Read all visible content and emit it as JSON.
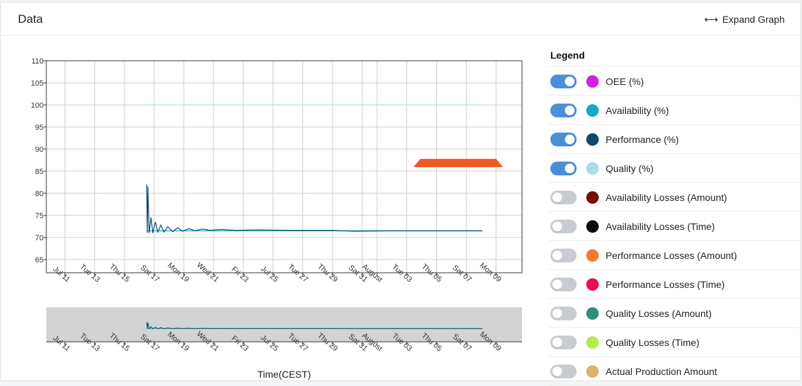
{
  "panel": {
    "title": "Data",
    "expand_label": "Expand Graph",
    "expand_icon": "⟷"
  },
  "legend": {
    "title": "Legend",
    "items": [
      {
        "label": "OEE (%)",
        "color": "#d61ee8",
        "enabled": true
      },
      {
        "label": "Availability (%)",
        "color": "#15a6c5",
        "enabled": true
      },
      {
        "label": "Performance (%)",
        "color": "#0e4a6b",
        "enabled": true
      },
      {
        "label": "Quality (%)",
        "color": "#a9dde2",
        "enabled": true
      },
      {
        "label": "Availability Losses (Amount)",
        "color": "#7a0b0b",
        "enabled": false
      },
      {
        "label": "Availability Losses (Time)",
        "color": "#0a0a0a",
        "enabled": false
      },
      {
        "label": "Performance Losses (Amount)",
        "color": "#f57a2e",
        "enabled": false
      },
      {
        "label": "Performance Losses (Time)",
        "color": "#e80f4e",
        "enabled": false
      },
      {
        "label": "Quality Losses (Amount)",
        "color": "#2f8f7f",
        "enabled": false
      },
      {
        "label": "Quality Losses (Time)",
        "color": "#b6ea4a",
        "enabled": false
      },
      {
        "label": "Actual Production Amount",
        "color": "#dcb26c",
        "enabled": false
      }
    ]
  },
  "chart_data": {
    "type": "line",
    "xlabel": "Time(CEST)",
    "ylabel": "",
    "ylim": [
      62,
      110
    ],
    "yticks": [
      65,
      70,
      75,
      80,
      85,
      90,
      95,
      100,
      105,
      110
    ],
    "xlim": [
      "2024-07-09T18:00",
      "2024-08-10T18:00"
    ],
    "xticks": [
      {
        "label": "Jul 11",
        "date": "2024-07-11"
      },
      {
        "label": "Tue 13",
        "date": "2024-07-13"
      },
      {
        "label": "Thu 15",
        "date": "2024-07-15"
      },
      {
        "label": "Sat 17",
        "date": "2024-07-17"
      },
      {
        "label": "Mon 19",
        "date": "2024-07-19"
      },
      {
        "label": "Wed 21",
        "date": "2024-07-21"
      },
      {
        "label": "Fri 23",
        "date": "2024-07-23"
      },
      {
        "label": "Jul 25",
        "date": "2024-07-25"
      },
      {
        "label": "Tue 27",
        "date": "2024-07-27"
      },
      {
        "label": "Thu 29",
        "date": "2024-07-29"
      },
      {
        "label": "Sat 31",
        "date": "2024-07-31"
      },
      {
        "label": "August",
        "date": "2024-08-01"
      },
      {
        "label": "Tue 03",
        "date": "2024-08-03"
      },
      {
        "label": "Thu 05",
        "date": "2024-08-05"
      },
      {
        "label": "Sat 07",
        "date": "2024-08-07"
      },
      {
        "label": "Mon 09",
        "date": "2024-08-09"
      }
    ],
    "grid": true,
    "series": [
      {
        "color": "#a9dde2",
        "points": [
          [
            "2024-07-16T12:00",
            100
          ],
          [
            "2024-08-08T02:00",
            100
          ]
        ]
      },
      {
        "color": "#15a6c5",
        "points": [
          [
            "2024-07-16T12:00",
            71.5
          ],
          [
            "2024-08-08T02:00",
            71.5
          ]
        ]
      },
      {
        "color": "#0e4a6b",
        "points": [
          [
            "2024-07-16T12:00",
            82
          ],
          [
            "2024-07-16T13:00",
            71
          ],
          [
            "2024-07-16T14:00",
            81.5
          ],
          [
            "2024-07-16T16:00",
            71
          ],
          [
            "2024-07-16T19:00",
            74.5
          ],
          [
            "2024-07-16T22:00",
            71
          ],
          [
            "2024-07-17T02:00",
            73.5
          ],
          [
            "2024-07-17T06:00",
            71.2
          ],
          [
            "2024-07-17T11:00",
            72.8
          ],
          [
            "2024-07-17T16:00",
            71.2
          ],
          [
            "2024-07-17T22:00",
            72.4
          ],
          [
            "2024-07-18T06:00",
            71.3
          ],
          [
            "2024-07-18T14:00",
            72.2
          ],
          [
            "2024-07-18T22:00",
            71.4
          ],
          [
            "2024-07-19T08:00",
            72
          ],
          [
            "2024-07-19T18:00",
            71.5
          ],
          [
            "2024-07-20T06:00",
            71.9
          ],
          [
            "2024-07-20T18:00",
            71.6
          ],
          [
            "2024-07-21T12:00",
            71.8
          ],
          [
            "2024-07-22T12:00",
            71.6
          ],
          [
            "2024-07-24T00:00",
            71.7
          ],
          [
            "2024-07-26T00:00",
            71.6
          ],
          [
            "2024-07-29T00:00",
            71.6
          ],
          [
            "2024-07-30T12:00",
            71.4
          ],
          [
            "2024-08-02T00:00",
            71.5
          ],
          [
            "2024-08-05T00:00",
            71.5
          ],
          [
            "2024-08-08T02:00",
            71.5
          ]
        ]
      },
      {
        "color": "#ef5a23",
        "polygon": [
          [
            "2024-08-03T12:00",
            86
          ],
          [
            "2024-08-03T22:00",
            87.7
          ],
          [
            "2024-08-09T00:00",
            87.7
          ],
          [
            "2024-08-09T10:00",
            86
          ]
        ]
      }
    ]
  }
}
